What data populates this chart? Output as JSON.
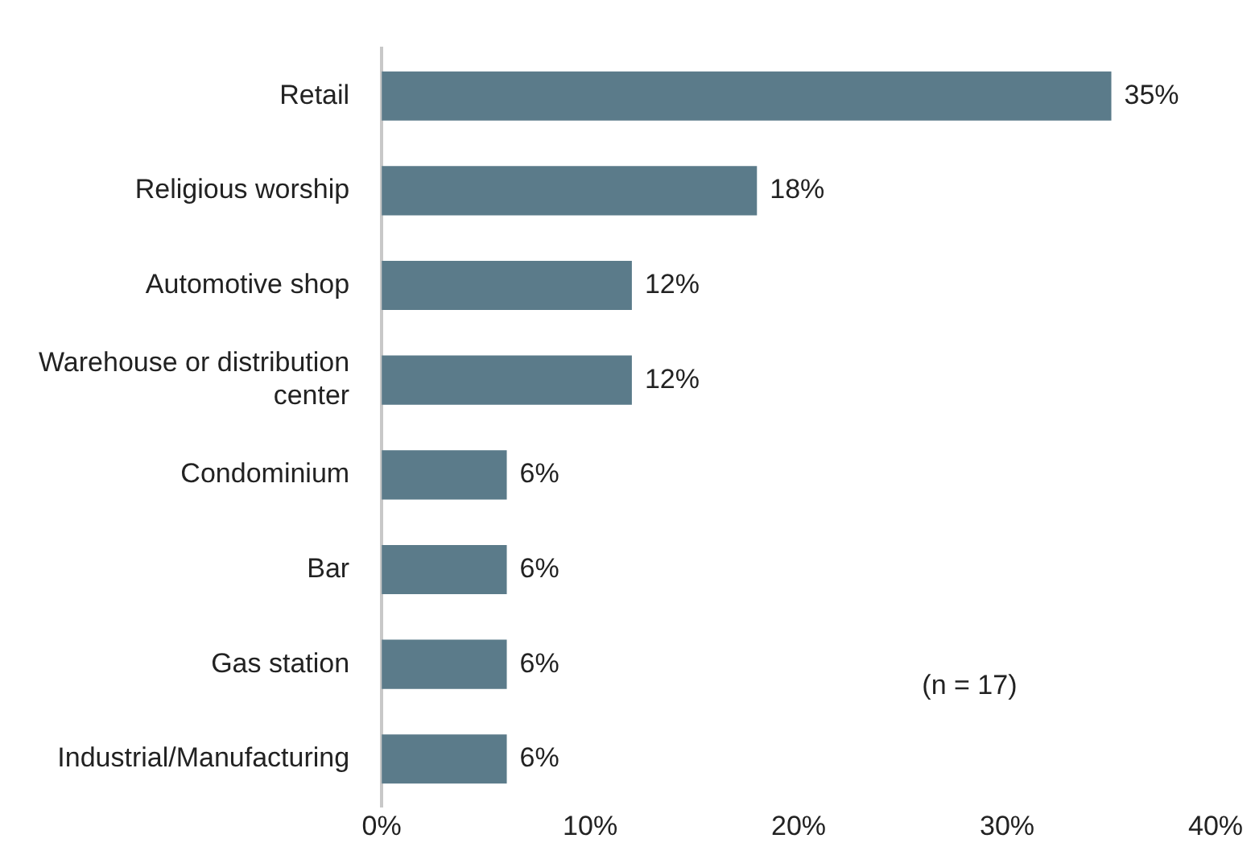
{
  "chart_data": {
    "type": "bar",
    "orientation": "horizontal",
    "categories": [
      "Retail",
      "Religious worship",
      "Automotive shop",
      "Warehouse or distribution center",
      "Condominium",
      "Bar",
      "Gas station",
      "Industrial/Manufacturing"
    ],
    "values": [
      35,
      18,
      12,
      12,
      6,
      6,
      6,
      6
    ],
    "value_labels": [
      "35%",
      "18%",
      "12%",
      "12%",
      "6%",
      "6%",
      "6%",
      "6%"
    ],
    "color": "#5b7b8a",
    "xlim": [
      0,
      40
    ],
    "xticks": [
      {
        "value": 0,
        "label": "0%"
      },
      {
        "value": 10,
        "label": "10%"
      },
      {
        "value": 20,
        "label": "20%"
      },
      {
        "value": 30,
        "label": "30%"
      },
      {
        "value": 40,
        "label": "40%"
      }
    ],
    "grid": false,
    "legend": false,
    "annotations": [
      "(n = 17)"
    ]
  }
}
